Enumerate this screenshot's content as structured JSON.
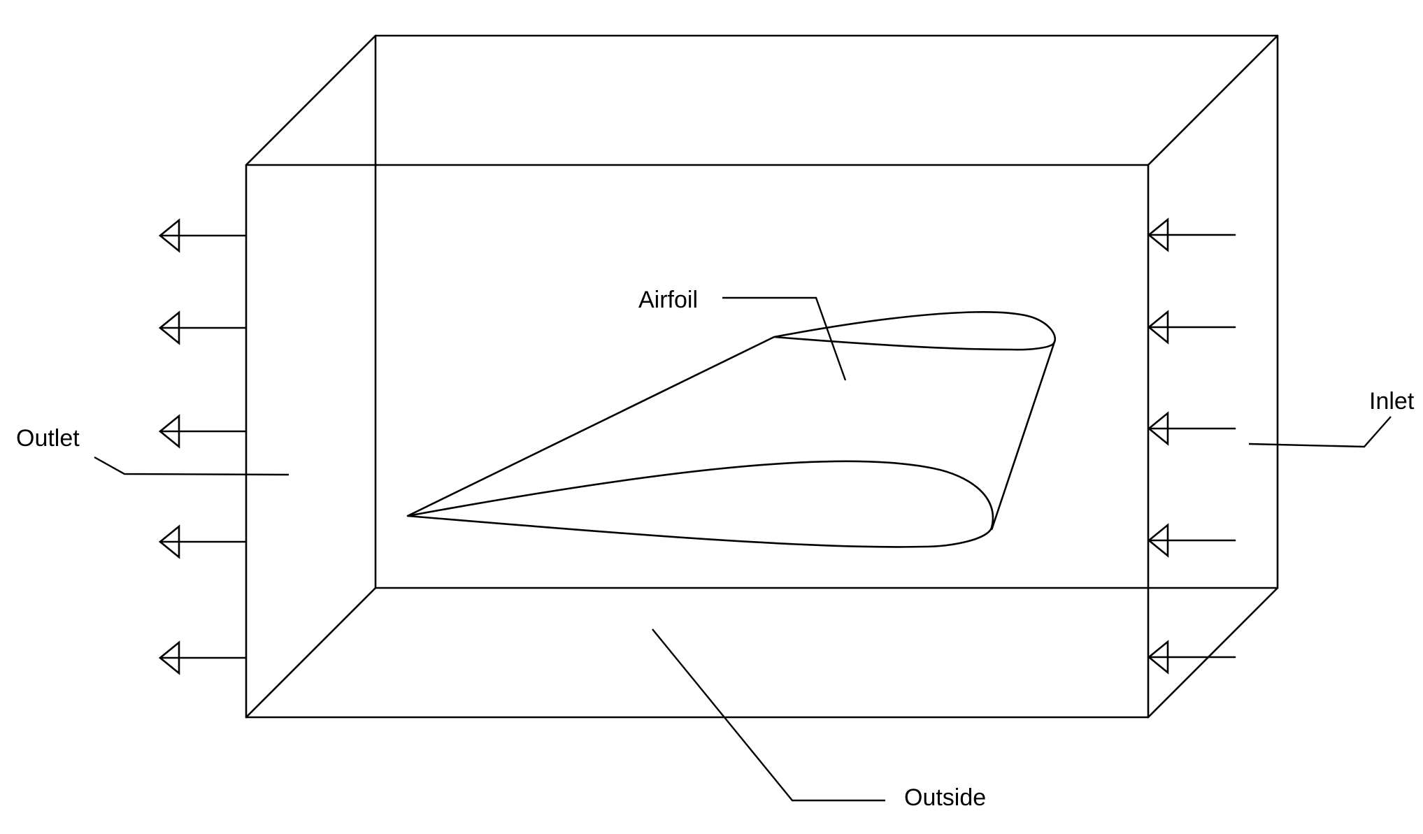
{
  "labels": {
    "airfoil": "Airfoil",
    "outlet": "Outlet",
    "inlet": "Inlet",
    "outside": "Outside"
  },
  "colors": {
    "stroke": "#000000",
    "background": "#ffffff"
  },
  "arrows": {
    "outlet_count": 5,
    "inlet_count": 5,
    "outlet_direction": "left",
    "inlet_direction": "left"
  }
}
